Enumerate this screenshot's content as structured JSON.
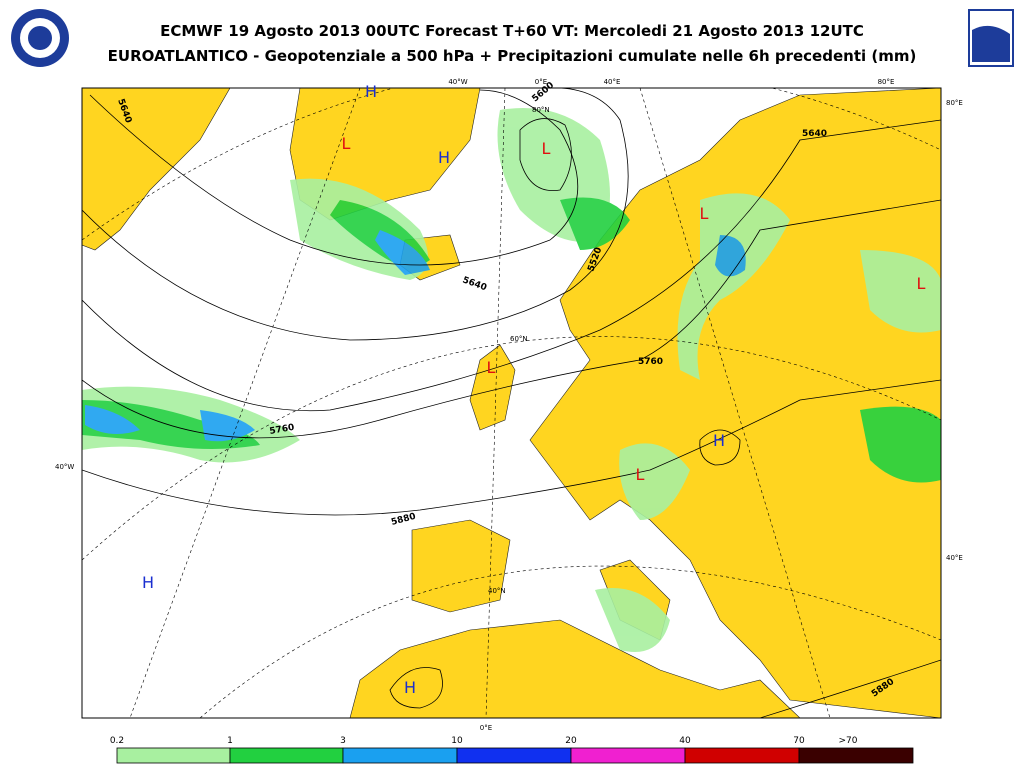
{
  "header": {
    "title": "ECMWF 19 Agosto 2013 00UTC Forecast T+60 VT: Mercoledi 21 Agosto 2013 12UTC",
    "subtitle": "EUROATLANTICO - Geopotenziale a 500 hPa + Precipitazioni cumulate nelle 6h precedenti (mm)"
  },
  "map": {
    "pressure_centers": [
      "H",
      "L",
      "H",
      "L",
      "L",
      "L",
      "L",
      "H",
      "L",
      "H",
      "H"
    ],
    "contour_labels": [
      "5600",
      "5640",
      "5640",
      "5640",
      "5520",
      "5760",
      "5760",
      "5880",
      "5880"
    ],
    "graticule_labels": [
      "40°W",
      "0°E",
      "40°E",
      "80°E",
      "80°E",
      "80°N",
      "60°N",
      "40°N",
      "40°W",
      "40°E",
      "0°E"
    ]
  },
  "legend": {
    "labels": [
      "0.2",
      "1",
      "3",
      "10",
      "20",
      "40",
      "70",
      ">70"
    ]
  }
}
